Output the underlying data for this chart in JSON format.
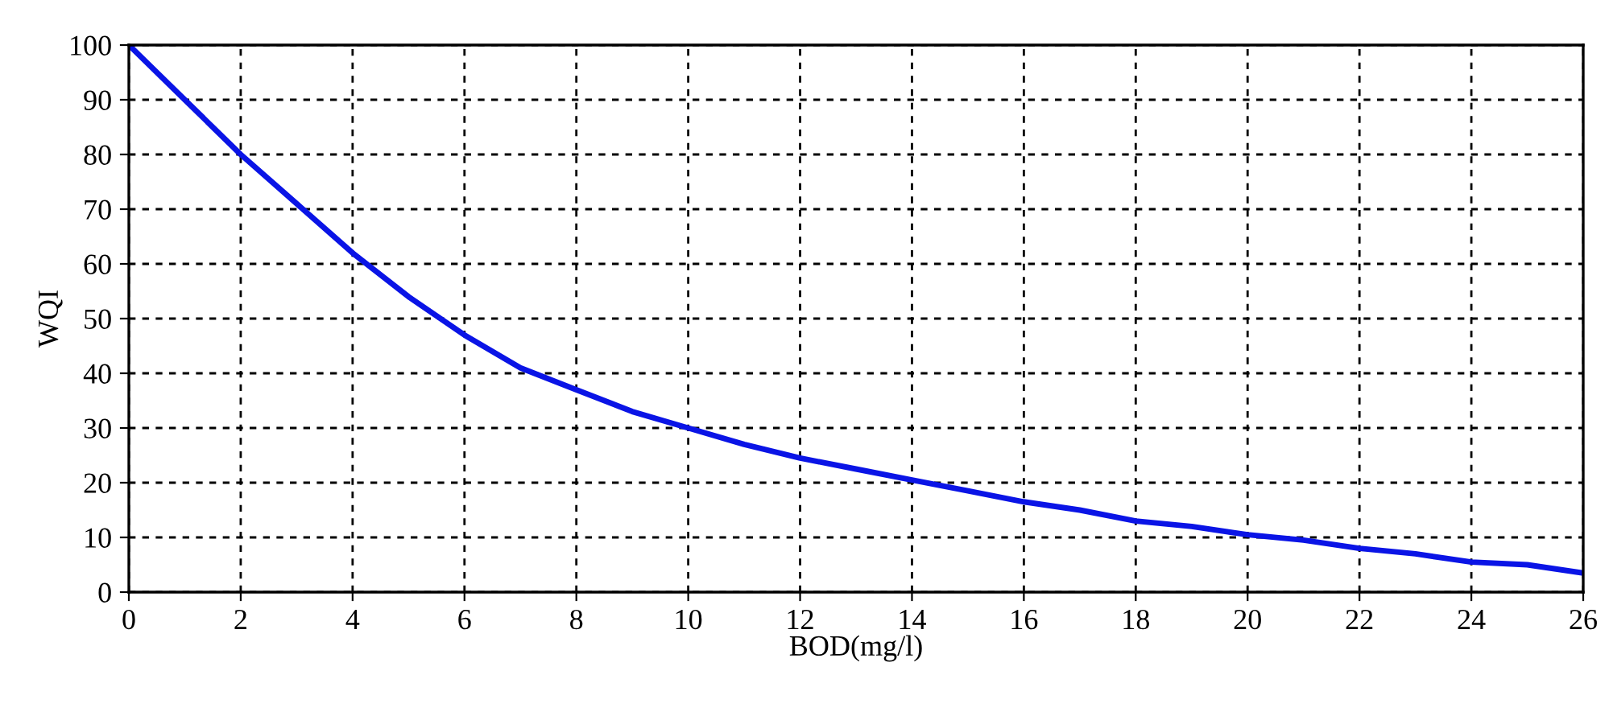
{
  "chart_data": {
    "type": "line",
    "xlabel": "BOD(mg/l)",
    "ylabel": "WQI",
    "x": [
      0,
      1,
      2,
      3,
      4,
      5,
      6,
      7,
      8,
      9,
      10,
      11,
      12,
      13,
      14,
      15,
      16,
      17,
      18,
      19,
      20,
      21,
      22,
      23,
      24,
      25,
      26
    ],
    "series": [
      {
        "color": "#0a14e6",
        "values": [
          100,
          90,
          80,
          71,
          62,
          54,
          47,
          41,
          37,
          33,
          30,
          27,
          24.5,
          22.5,
          20.5,
          18.5,
          16.5,
          15,
          13,
          12,
          10.5,
          9.5,
          8,
          7,
          5.5,
          5,
          3.5
        ]
      }
    ],
    "xlim": [
      0,
      26
    ],
    "ylim": [
      0,
      100
    ],
    "xticks": [
      0,
      2,
      4,
      6,
      8,
      10,
      12,
      14,
      16,
      18,
      20,
      22,
      24,
      26
    ],
    "yticks": [
      0,
      10,
      20,
      30,
      40,
      50,
      60,
      70,
      80,
      90,
      100
    ],
    "grid": true
  }
}
